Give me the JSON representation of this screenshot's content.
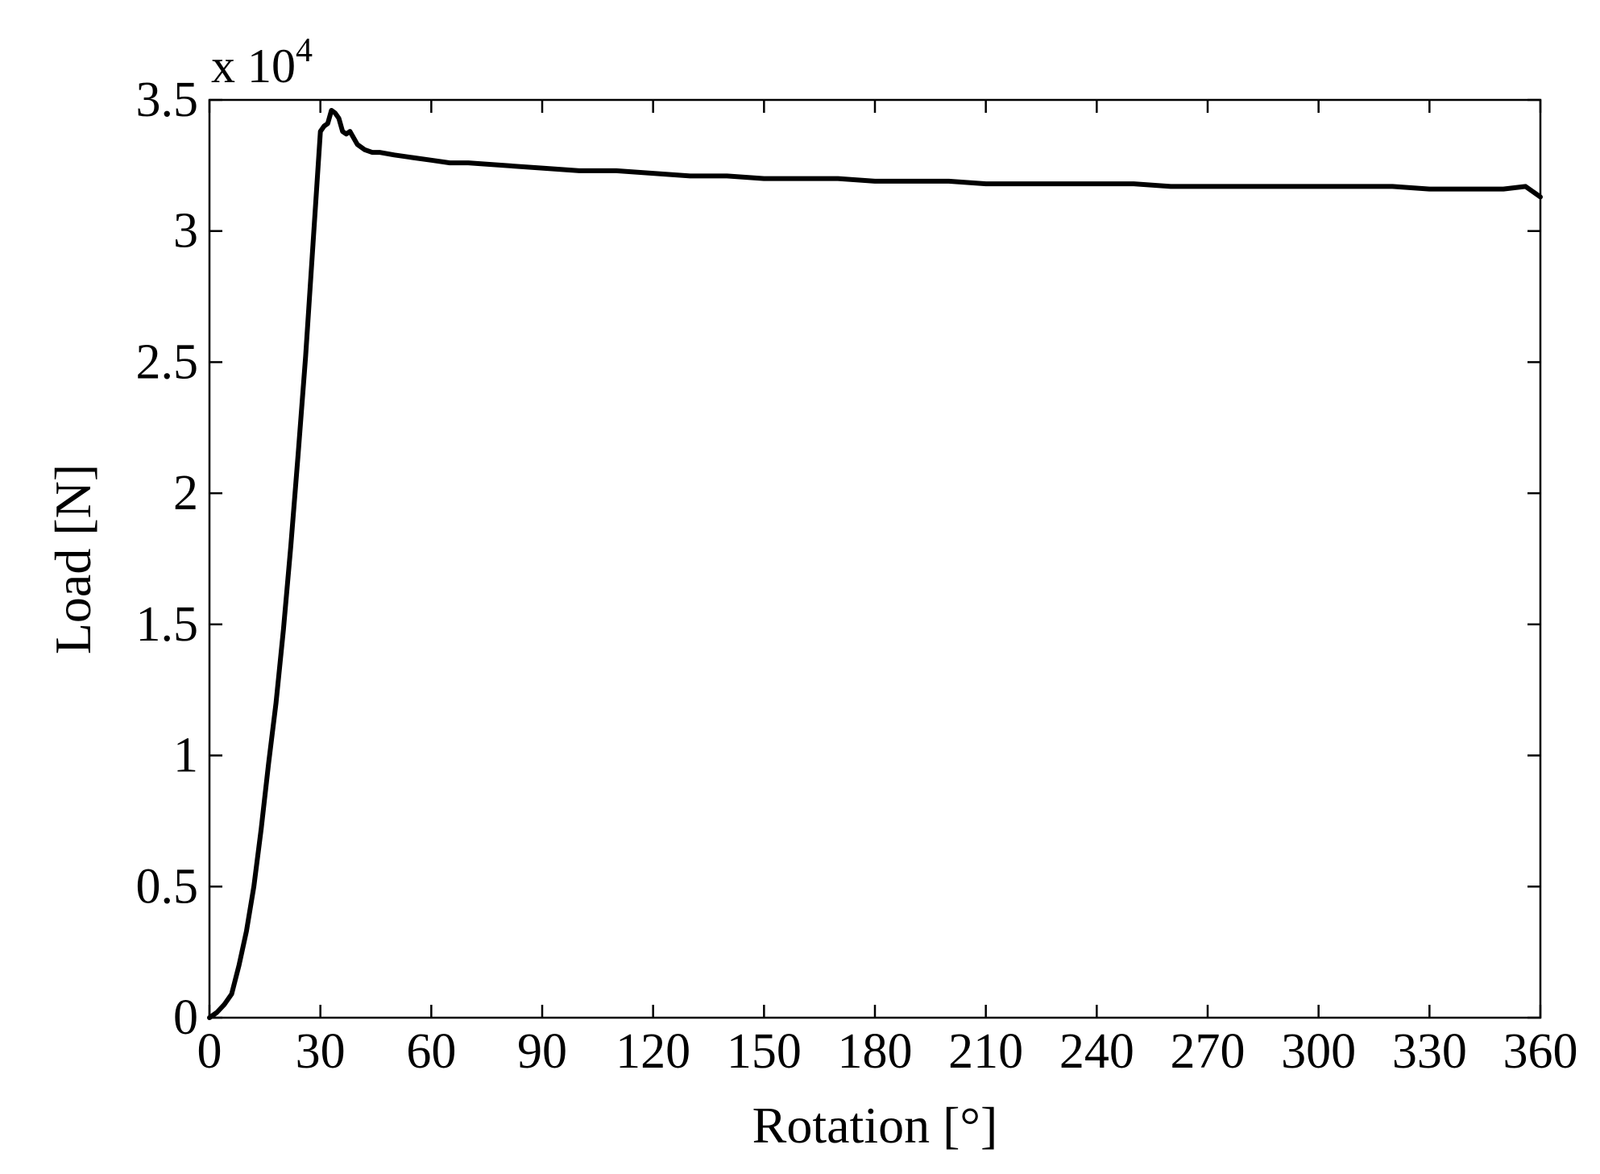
{
  "chart_data": {
    "type": "line",
    "title": "",
    "xlabel": "Rotation [°]",
    "ylabel": "Load [N]",
    "y_exponent_base": "x 10",
    "y_exponent_power": "4",
    "xlim": [
      0,
      360
    ],
    "ylim": [
      0,
      3.5
    ],
    "grid": false,
    "legend": "none",
    "x_ticks": [
      "0",
      "30",
      "60",
      "90",
      "120",
      "150",
      "180",
      "210",
      "240",
      "270",
      "300",
      "330",
      "360"
    ],
    "y_ticks": [
      "0",
      "0.5",
      "1",
      "1.5",
      "2",
      "2.5",
      "3",
      "3.5"
    ],
    "line_color": "#000000",
    "series": [
      {
        "x": [
          0,
          2,
          4,
          6,
          8,
          10,
          12,
          14,
          16,
          18,
          20,
          22,
          24,
          26,
          28,
          30,
          31,
          32,
          33,
          34,
          35,
          36,
          37,
          38,
          40,
          42,
          44,
          46,
          50,
          55,
          60,
          65,
          70,
          80,
          90,
          100,
          110,
          120,
          130,
          140,
          150,
          160,
          170,
          180,
          190,
          200,
          210,
          220,
          230,
          240,
          250,
          260,
          270,
          280,
          290,
          300,
          310,
          320,
          330,
          340,
          350,
          356,
          358,
          360
        ],
        "y": [
          0.0,
          0.02,
          0.05,
          0.09,
          0.2,
          0.33,
          0.5,
          0.72,
          0.97,
          1.2,
          1.48,
          1.8,
          2.15,
          2.52,
          2.95,
          3.38,
          3.4,
          3.41,
          3.46,
          3.45,
          3.43,
          3.38,
          3.37,
          3.38,
          3.33,
          3.31,
          3.3,
          3.3,
          3.29,
          3.28,
          3.27,
          3.26,
          3.26,
          3.25,
          3.24,
          3.23,
          3.23,
          3.22,
          3.21,
          3.21,
          3.2,
          3.2,
          3.2,
          3.19,
          3.19,
          3.19,
          3.18,
          3.18,
          3.18,
          3.18,
          3.18,
          3.17,
          3.17,
          3.17,
          3.17,
          3.17,
          3.17,
          3.17,
          3.16,
          3.16,
          3.16,
          3.17,
          3.15,
          3.13
        ]
      }
    ]
  }
}
